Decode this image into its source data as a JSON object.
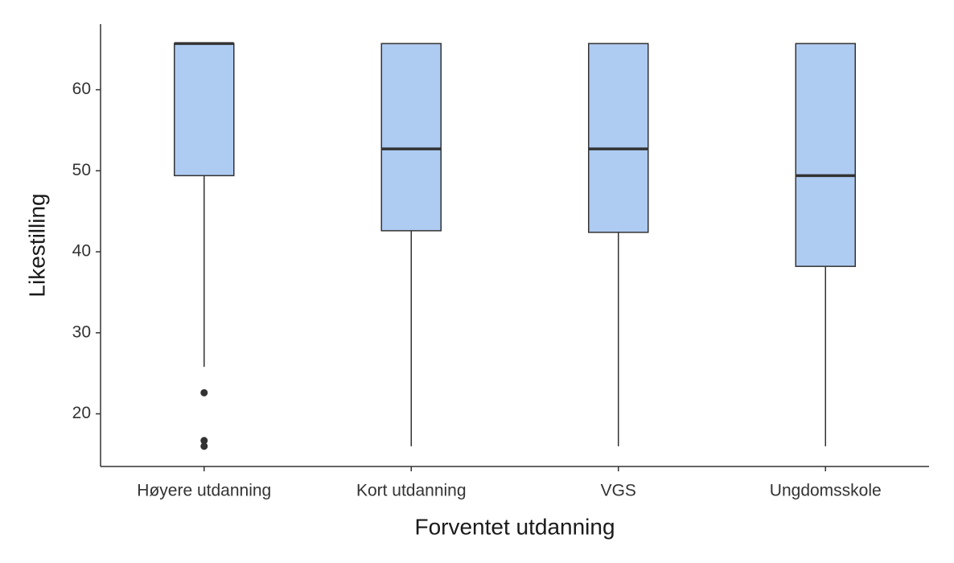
{
  "chart_data": {
    "type": "box",
    "x_label": "Forventet utdanning",
    "y_label": "Likestilling",
    "categories": [
      "Høyere utdanning",
      "Kort utdanning",
      "VGS",
      "Ungdomsskole"
    ],
    "min": [
      25.8,
      16,
      16,
      16
    ],
    "q1": [
      49.4,
      42.6,
      42.4,
      38.2
    ],
    "median": [
      65.7,
      52.7,
      52.7,
      49.4
    ],
    "q3": [
      65.7,
      65.7,
      65.7,
      65.7
    ],
    "max": [
      65.7,
      65.7,
      65.7,
      65.7
    ],
    "outliers": [
      [
        22.6,
        16.7,
        16
      ],
      [],
      [],
      []
    ],
    "color": "#aecbf2",
    "ylim": [
      13.5,
      68.1
    ],
    "yticks": [
      20,
      30,
      40,
      50,
      60
    ],
    "grid": false
  }
}
